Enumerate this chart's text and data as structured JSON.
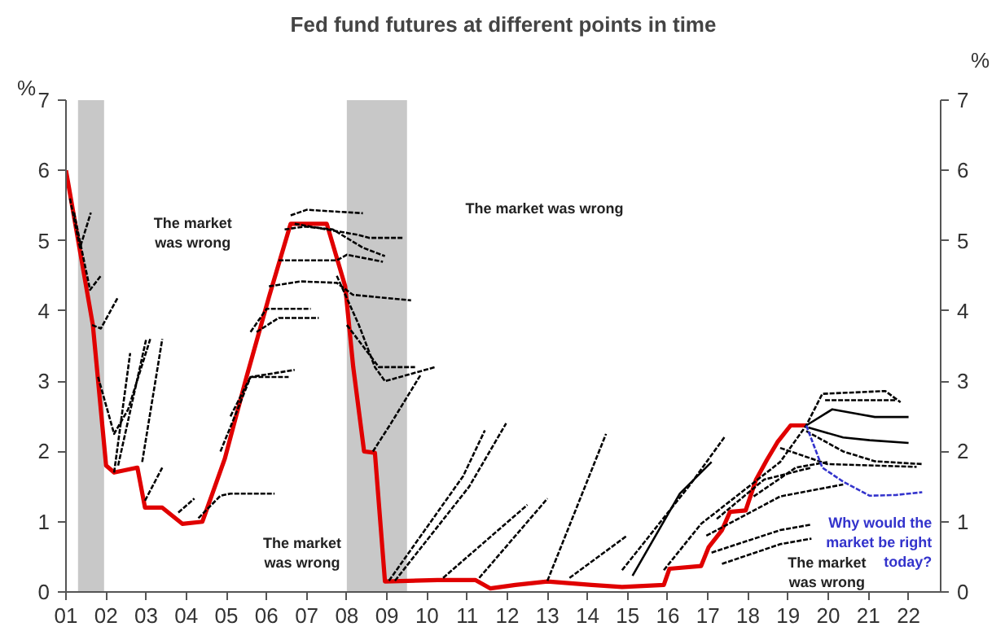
{
  "chart_data": {
    "type": "line",
    "title": "Fed fund futures at different points in time",
    "ylabel": "%",
    "y2label": "%",
    "xlim": [
      2001,
      2022.8
    ],
    "ylim": [
      0,
      7
    ],
    "y2lim": [
      0,
      7
    ],
    "xticks": [
      {
        "value": 2001,
        "label": "01"
      },
      {
        "value": 2002,
        "label": "02"
      },
      {
        "value": 2003,
        "label": "03"
      },
      {
        "value": 2004,
        "label": "04"
      },
      {
        "value": 2005,
        "label": "05"
      },
      {
        "value": 2006,
        "label": "06"
      },
      {
        "value": 2007,
        "label": "07"
      },
      {
        "value": 2008,
        "label": "08"
      },
      {
        "value": 2009,
        "label": "09"
      },
      {
        "value": 2010,
        "label": "10"
      },
      {
        "value": 2011,
        "label": "11"
      },
      {
        "value": 2012,
        "label": "12"
      },
      {
        "value": 2013,
        "label": "13"
      },
      {
        "value": 2014,
        "label": "14"
      },
      {
        "value": 2015,
        "label": "15"
      },
      {
        "value": 2016,
        "label": "16"
      },
      {
        "value": 2017,
        "label": "17"
      },
      {
        "value": 2018,
        "label": "18"
      },
      {
        "value": 2019,
        "label": "19"
      },
      {
        "value": 2020,
        "label": "20"
      },
      {
        "value": 2021,
        "label": "21"
      },
      {
        "value": 2022,
        "label": "22"
      }
    ],
    "yticks": [
      0,
      1,
      2,
      3,
      4,
      5,
      6,
      7
    ],
    "y2ticks": [
      0,
      1,
      2,
      3,
      4,
      5,
      6,
      7
    ],
    "grid": false,
    "bands": [
      {
        "axis": "x",
        "from": 2001.3,
        "to": 2001.95,
        "color": "#c8c8c8"
      },
      {
        "axis": "x",
        "from": 2008.0,
        "to": 2009.5,
        "color": "#c8c8c8"
      }
    ],
    "annotations": [
      "The market\nwas wrong",
      "The market\nwas wrong",
      "The market was wrong",
      "The market\nwas wrong"
    ],
    "series": [
      {
        "color": "#e00000",
        "line_style": "solid",
        "x": [
          2001.0,
          2001.67,
          2002.0,
          2002.2,
          2002.78,
          2002.97,
          2003.4,
          2003.9,
          2004.4,
          2004.96,
          2005.5,
          2006.06,
          2006.6,
          2007.5,
          2007.96,
          2008.16,
          2008.43,
          2008.7,
          2008.95,
          2010.26,
          2011.2,
          2011.58,
          2012.2,
          2013.0,
          2014.1,
          2014.86,
          2015.9,
          2016.04,
          2016.83,
          2017.02,
          2017.35,
          2017.55,
          2017.94,
          2018.2,
          2018.47,
          2018.73,
          2019.06,
          2019.45
        ],
        "values": [
          6.0,
          3.8,
          1.8,
          1.7,
          1.77,
          1.2,
          1.2,
          0.97,
          1.0,
          1.9,
          3.06,
          4.2,
          5.24,
          5.24,
          4.35,
          3.2,
          2.0,
          1.98,
          0.15,
          0.17,
          0.17,
          0.05,
          0.1,
          0.15,
          0.1,
          0.07,
          0.1,
          0.33,
          0.37,
          0.64,
          0.88,
          1.14,
          1.16,
          1.6,
          1.88,
          2.13,
          2.37,
          2.37
        ]
      },
      {
        "color": "#000000",
        "line_style": "dashed",
        "x": [
          2001.1,
          2001.35,
          2001.62
        ],
        "values": [
          5.6,
          4.9,
          5.4
        ]
      },
      {
        "color": "#000000",
        "line_style": "dashed",
        "x": [
          2001.2,
          2001.6,
          2001.87
        ],
        "values": [
          5.4,
          4.3,
          4.5
        ]
      },
      {
        "color": "#000000",
        "line_style": "dashed",
        "x": [
          2001.65,
          2001.87,
          2002.3
        ],
        "values": [
          3.8,
          3.75,
          4.2
        ]
      },
      {
        "color": "#000000",
        "line_style": "dashed",
        "x": [
          2001.8,
          2002.2,
          2002.55,
          2003.1
        ],
        "values": [
          3.06,
          2.25,
          2.6,
          3.6
        ]
      },
      {
        "color": "#000000",
        "line_style": "dashed",
        "x": [
          2002.2,
          2002.6
        ],
        "values": [
          1.7,
          3.4
        ]
      },
      {
        "color": "#000000",
        "line_style": "dashed",
        "x": [
          2002.3,
          2003.0
        ],
        "values": [
          1.8,
          3.6
        ]
      },
      {
        "color": "#000000",
        "line_style": "dashed",
        "x": [
          2002.9,
          2003.4
        ],
        "values": [
          1.85,
          3.6
        ]
      },
      {
        "color": "#000000",
        "line_style": "dashed",
        "x": [
          2002.97,
          2003.4
        ],
        "values": [
          1.3,
          1.77
        ]
      },
      {
        "color": "#000000",
        "line_style": "dashed",
        "x": [
          2003.8,
          2004.2
        ],
        "values": [
          1.13,
          1.33
        ]
      },
      {
        "color": "#000000",
        "line_style": "dashed",
        "x": [
          2004.3,
          2004.85,
          2005.1,
          2006.2
        ],
        "values": [
          1.05,
          1.37,
          1.4,
          1.4
        ]
      },
      {
        "color": "#000000",
        "line_style": "dashed",
        "x": [
          2004.85,
          2005.35,
          2005.6,
          2006.7
        ],
        "values": [
          2.0,
          2.7,
          3.06,
          3.16
        ]
      },
      {
        "color": "#000000",
        "line_style": "dashed",
        "x": [
          2005.1,
          2005.6,
          2006.55
        ],
        "values": [
          2.5,
          3.06,
          3.06
        ]
      },
      {
        "color": "#000000",
        "line_style": "dashed",
        "x": [
          2005.6,
          2006.0,
          2007.1
        ],
        "values": [
          3.7,
          4.03,
          4.03
        ]
      },
      {
        "color": "#000000",
        "line_style": "dashed",
        "x": [
          2005.75,
          2006.3,
          2007.3
        ],
        "values": [
          3.7,
          3.9,
          3.9
        ]
      },
      {
        "color": "#000000",
        "line_style": "dashed",
        "x": [
          2006.06,
          2006.85,
          2007.75,
          2008.15,
          2009.6
        ],
        "values": [
          4.35,
          4.42,
          4.4,
          4.23,
          4.15
        ]
      },
      {
        "color": "#000000",
        "line_style": "dashed",
        "x": [
          2006.3,
          2007.75,
          2008.0,
          2008.9
        ],
        "values": [
          4.72,
          4.72,
          4.8,
          4.7
        ]
      },
      {
        "color": "#000000",
        "line_style": "dashed",
        "x": [
          2006.45,
          2006.95,
          2007.65,
          2008.4,
          2008.95
        ],
        "values": [
          5.16,
          5.2,
          5.16,
          4.9,
          4.78
        ]
      },
      {
        "color": "#000000",
        "line_style": "dashed",
        "x": [
          2006.6,
          2007.0,
          2008.4
        ],
        "values": [
          5.36,
          5.44,
          5.39
        ]
      },
      {
        "color": "#000000",
        "line_style": "dashed",
        "x": [
          2006.7,
          2007.5,
          2008.3,
          2008.55,
          2009.4
        ],
        "values": [
          5.24,
          5.16,
          5.08,
          5.04,
          5.04
        ]
      },
      {
        "color": "#000000",
        "line_style": "dashed",
        "x": [
          2007.75,
          2008.3,
          2008.7,
          2008.95,
          2010.2
        ],
        "values": [
          4.5,
          3.8,
          3.2,
          3.0,
          3.2
        ]
      },
      {
        "color": "#000000",
        "line_style": "dashed",
        "x": [
          2008.0,
          2008.8,
          2009.7
        ],
        "values": [
          3.8,
          3.2,
          3.2
        ]
      },
      {
        "color": "#000000",
        "line_style": "dashed",
        "x": [
          2008.65,
          2009.1,
          2009.85
        ],
        "values": [
          2.0,
          2.4,
          3.1
        ]
      },
      {
        "color": "#000000",
        "line_style": "dashed",
        "x": [
          2009.05,
          2010.9,
          2011.44
        ],
        "values": [
          0.16,
          1.65,
          2.3
        ]
      },
      {
        "color": "#000000",
        "line_style": "dashed",
        "x": [
          2009.2,
          2011.05,
          2011.97
        ],
        "values": [
          0.16,
          1.5,
          2.4
        ]
      },
      {
        "color": "#000000",
        "line_style": "dashed",
        "x": [
          2010.4,
          2012.5
        ],
        "values": [
          0.2,
          1.24
        ]
      },
      {
        "color": "#000000",
        "line_style": "dashed",
        "x": [
          2011.3,
          2013.0
        ],
        "values": [
          0.2,
          1.33
        ]
      },
      {
        "color": "#000000",
        "line_style": "dashed",
        "x": [
          2013.0,
          2014.46
        ],
        "values": [
          0.16,
          2.25
        ]
      },
      {
        "color": "#000000",
        "line_style": "dashed",
        "x": [
          2013.55,
          2014.98
        ],
        "values": [
          0.2,
          0.8
        ]
      },
      {
        "color": "#000000",
        "line_style": "dashed",
        "x": [
          2014.86,
          2016.56,
          2017.42
        ],
        "values": [
          0.31,
          1.53,
          2.21
        ]
      },
      {
        "color": "#000000",
        "line_style": "solid",
        "x": [
          2015.12,
          2016.3,
          2017.09
        ],
        "values": [
          0.23,
          1.4,
          1.85
        ]
      },
      {
        "color": "#000000",
        "line_style": "dashed",
        "x": [
          2015.9,
          2016.83,
          2018.8,
          2019.45,
          2019.85,
          2021.42,
          2021.8
        ],
        "values": [
          0.31,
          0.97,
          1.85,
          2.37,
          2.82,
          2.86,
          2.7
        ]
      },
      {
        "color": "#000000",
        "line_style": "dashed",
        "x": [
          2019.92,
          2021.67
        ],
        "values": [
          2.73,
          2.73
        ]
      },
      {
        "color": "#000000",
        "line_style": "solid",
        "x": [
          2019.45,
          2020.1,
          2021.16,
          2022.0
        ],
        "values": [
          2.37,
          2.6,
          2.49,
          2.49
        ]
      },
      {
        "color": "#000000",
        "line_style": "solid",
        "x": [
          2019.5,
          2020.37,
          2021.03,
          2022.0
        ],
        "values": [
          2.34,
          2.2,
          2.16,
          2.12
        ]
      },
      {
        "color": "#000000",
        "line_style": "dashed",
        "x": [
          2019.45,
          2020.37,
          2021.16,
          2022.34
        ],
        "values": [
          2.29,
          2.0,
          1.86,
          1.82
        ]
      },
      {
        "color": "#000000",
        "line_style": "dashed",
        "x": [
          2018.8,
          2019.98,
          2022.2
        ],
        "values": [
          2.05,
          1.82,
          1.78
        ]
      },
      {
        "color": "#000000",
        "line_style": "dashed",
        "x": [
          2018.14,
          2019.19,
          2019.98
        ],
        "values": [
          1.36,
          1.77,
          1.85
        ]
      },
      {
        "color": "#000000",
        "line_style": "dashed",
        "x": [
          2017.22,
          2018.4,
          2019.58
        ],
        "values": [
          1.04,
          1.6,
          1.77
        ]
      },
      {
        "color": "#000000",
        "line_style": "dashed",
        "x": [
          2016.96,
          2018.8,
          2020.37
        ],
        "values": [
          0.8,
          1.36,
          1.53
        ]
      },
      {
        "color": "#000000",
        "line_style": "dashed",
        "x": [
          2017.09,
          2018.8,
          2019.58
        ],
        "values": [
          0.56,
          0.88,
          0.96
        ]
      },
      {
        "color": "#000000",
        "line_style": "dashed",
        "x": [
          2017.35,
          2018.8,
          2019.58
        ],
        "values": [
          0.4,
          0.68,
          0.76
        ]
      },
      {
        "name": "Why would the\nmarket be right\ntoday?",
        "color": "#3333cc",
        "line_style": "dashed",
        "x": [
          2019.45,
          2019.85,
          2020.37,
          2021.03,
          2021.68,
          2022.34
        ],
        "values": [
          2.37,
          1.77,
          1.57,
          1.37,
          1.38,
          1.42
        ]
      }
    ]
  }
}
